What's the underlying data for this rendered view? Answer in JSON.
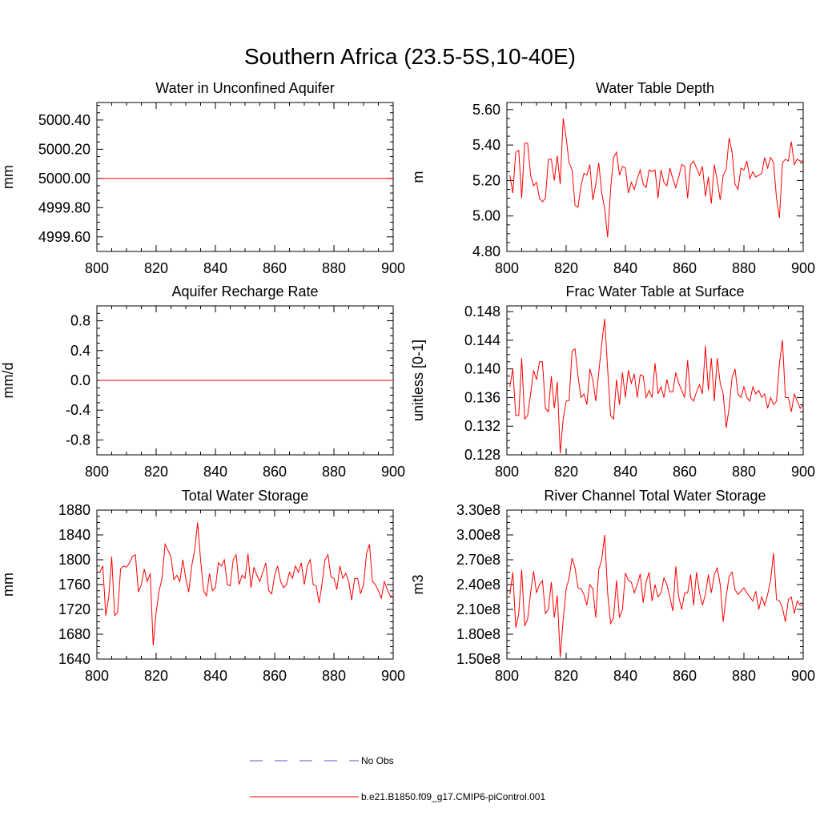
{
  "figure_title": "Southern Africa (23.5-5S,10-40E)",
  "legend": {
    "obs_label": "No Obs",
    "model_label": "b.e21.B1850.f09_g17.CMIP6-piControl.001",
    "obs_color": "#5a5ad0",
    "model_color": "#ff0000"
  },
  "chart_data": [
    {
      "type": "line",
      "title": "Water in Unconfined Aquifer",
      "ylabel": "mm",
      "xlim": [
        800,
        900
      ],
      "ylim": [
        4999.5,
        5000.52
      ],
      "xticks": [
        800,
        820,
        840,
        860,
        880,
        900
      ],
      "yticks": [
        4999.6,
        4999.8,
        5000.0,
        5000.2,
        5000.4
      ],
      "ytick_labels": [
        "4999.60",
        "4999.80",
        "5000.00",
        "5000.20",
        "5000.40"
      ],
      "x_start": 801,
      "values": [
        5000.0,
        5000.0,
        5000.0,
        5000.0,
        5000.0,
        5000.0,
        5000.0,
        5000.0,
        5000.0,
        5000.0,
        5000.0,
        5000.0,
        5000.0,
        5000.0,
        5000.0,
        5000.0,
        5000.0,
        5000.0,
        5000.0,
        5000.0,
        5000.0,
        5000.0,
        5000.0,
        5000.0,
        5000.0,
        5000.0,
        5000.0,
        5000.0,
        5000.0,
        5000.0,
        5000.0,
        5000.0,
        5000.0,
        5000.0,
        5000.0,
        5000.0,
        5000.0,
        5000.0,
        5000.0,
        5000.0,
        5000.0,
        5000.0,
        5000.0,
        5000.0,
        5000.0,
        5000.0,
        5000.0,
        5000.0,
        5000.0,
        5000.0,
        5000.0,
        5000.0,
        5000.0,
        5000.0,
        5000.0,
        5000.0,
        5000.0,
        5000.0,
        5000.0,
        5000.0,
        5000.0,
        5000.0,
        5000.0,
        5000.0,
        5000.0,
        5000.0,
        5000.0,
        5000.0,
        5000.0,
        5000.0,
        5000.0,
        5000.0,
        5000.0,
        5000.0,
        5000.0,
        5000.0,
        5000.0,
        5000.0,
        5000.0,
        5000.0,
        5000.0,
        5000.0,
        5000.0,
        5000.0,
        5000.0,
        5000.0,
        5000.0,
        5000.0,
        5000.0,
        5000.0,
        5000.0,
        5000.0,
        5000.0,
        5000.0,
        5000.0,
        5000.0,
        5000.0,
        5000.0,
        5000.0,
        5000.0
      ]
    },
    {
      "type": "line",
      "title": "Water Table Depth",
      "ylabel": "m",
      "xlim": [
        800,
        900
      ],
      "ylim": [
        4.8,
        5.64
      ],
      "xticks": [
        800,
        820,
        840,
        860,
        880,
        900
      ],
      "yticks": [
        4.8,
        5.0,
        5.2,
        5.4,
        5.6
      ],
      "ytick_labels": [
        "4.80",
        "5.00",
        "5.20",
        "5.40",
        "5.60"
      ],
      "x_start": 801,
      "values": [
        5.23,
        5.13,
        5.36,
        5.37,
        5.1,
        5.41,
        5.41,
        5.23,
        5.17,
        5.19,
        5.1,
        5.08,
        5.1,
        5.32,
        5.32,
        5.2,
        5.34,
        5.18,
        5.55,
        5.44,
        5.3,
        5.26,
        5.06,
        5.05,
        5.17,
        5.24,
        5.23,
        5.29,
        5.09,
        5.18,
        5.3,
        5.13,
        5.04,
        4.88,
        5.15,
        5.33,
        5.36,
        5.23,
        5.28,
        5.27,
        5.13,
        5.19,
        5.15,
        5.21,
        5.26,
        5.18,
        5.16,
        5.26,
        5.25,
        5.26,
        5.1,
        5.26,
        5.19,
        5.17,
        5.27,
        5.21,
        5.16,
        5.22,
        5.29,
        5.28,
        5.1,
        5.29,
        5.31,
        5.27,
        5.23,
        5.28,
        5.11,
        5.22,
        5.07,
        5.29,
        5.2,
        5.09,
        5.23,
        5.26,
        5.44,
        5.36,
        5.18,
        5.15,
        5.27,
        5.26,
        5.31,
        5.21,
        5.25,
        5.22,
        5.23,
        5.24,
        5.33,
        5.27,
        5.33,
        5.3,
        5.1,
        4.99,
        5.3,
        5.32,
        5.31,
        5.42,
        5.29,
        5.32,
        5.31,
        5.31
      ]
    },
    {
      "type": "line",
      "title": "Aquifer Recharge Rate",
      "ylabel": "mm/d",
      "xlim": [
        800,
        900
      ],
      "ylim": [
        -1.0,
        1.0
      ],
      "xticks": [
        800,
        820,
        840,
        860,
        880,
        900
      ],
      "yticks": [
        -0.8,
        -0.4,
        0.0,
        0.4,
        0.8
      ],
      "ytick_labels": [
        "-0.8",
        "-0.4",
        "0.0",
        "0.4",
        "0.8"
      ],
      "x_start": 801,
      "values": [
        0.0,
        0.0,
        0.0,
        0.0,
        0.0,
        0.0,
        0.0,
        0.0,
        0.0,
        0.0,
        0.0,
        0.0,
        0.0,
        0.0,
        0.0,
        0.0,
        0.0,
        0.0,
        0.0,
        0.0,
        0.0,
        0.0,
        0.0,
        0.0,
        0.0,
        0.0,
        0.0,
        0.0,
        0.0,
        0.0,
        0.0,
        0.0,
        0.0,
        0.0,
        0.0,
        0.0,
        0.0,
        0.0,
        0.0,
        0.0,
        0.0,
        0.0,
        0.0,
        0.0,
        0.0,
        0.0,
        0.0,
        0.0,
        0.0,
        0.0,
        0.0,
        0.0,
        0.0,
        0.0,
        0.0,
        0.0,
        0.0,
        0.0,
        0.0,
        0.0,
        0.0,
        0.0,
        0.0,
        0.0,
        0.0,
        0.0,
        0.0,
        0.0,
        0.0,
        0.0,
        0.0,
        0.0,
        0.0,
        0.0,
        0.0,
        0.0,
        0.0,
        0.0,
        0.0,
        0.0,
        0.0,
        0.0,
        0.0,
        0.0,
        0.0,
        0.0,
        0.0,
        0.0,
        0.0,
        0.0,
        0.0,
        0.0,
        0.0,
        0.0,
        0.0,
        0.0,
        0.0,
        0.0,
        0.0,
        0.0
      ]
    },
    {
      "type": "line",
      "title": "Frac Water Table at Surface",
      "ylabel": "unitless [0-1]",
      "xlim": [
        800,
        900
      ],
      "ylim": [
        0.128,
        0.1488
      ],
      "xticks": [
        800,
        820,
        840,
        860,
        880,
        900
      ],
      "yticks": [
        0.128,
        0.132,
        0.136,
        0.14,
        0.144,
        0.148
      ],
      "ytick_labels": [
        "0.128",
        "0.132",
        "0.136",
        "0.140",
        "0.144",
        "0.148"
      ],
      "x_start": 801,
      "values": [
        0.1375,
        0.14,
        0.1335,
        0.1335,
        0.1415,
        0.133,
        0.1335,
        0.1365,
        0.1398,
        0.1385,
        0.141,
        0.141,
        0.1345,
        0.134,
        0.139,
        0.1345,
        0.1382,
        0.1282,
        0.133,
        0.1355,
        0.1356,
        0.1425,
        0.1428,
        0.139,
        0.136,
        0.1365,
        0.135,
        0.14,
        0.1385,
        0.1355,
        0.1395,
        0.1435,
        0.147,
        0.14,
        0.1335,
        0.133,
        0.1385,
        0.135,
        0.1395,
        0.136,
        0.1398,
        0.138,
        0.1393,
        0.136,
        0.1392,
        0.139,
        0.136,
        0.137,
        0.136,
        0.1408,
        0.1365,
        0.1375,
        0.136,
        0.1385,
        0.1368,
        0.1368,
        0.1395,
        0.138,
        0.137,
        0.136,
        0.1412,
        0.136,
        0.1355,
        0.1368,
        0.1378,
        0.1365,
        0.1432,
        0.137,
        0.1415,
        0.1355,
        0.1415,
        0.138,
        0.1365,
        0.1318,
        0.1345,
        0.1388,
        0.14,
        0.1365,
        0.136,
        0.1375,
        0.136,
        0.1355,
        0.1375,
        0.1365,
        0.137,
        0.136,
        0.1365,
        0.1345,
        0.136,
        0.135,
        0.1355,
        0.1408,
        0.144,
        0.136,
        0.136,
        0.134,
        0.1365,
        0.1355,
        0.1345,
        0.135
      ]
    },
    {
      "type": "line",
      "title": "Total Water Storage",
      "ylabel": "mm",
      "xlim": [
        800,
        900
      ],
      "ylim": [
        1640,
        1880
      ],
      "xticks": [
        800,
        820,
        840,
        860,
        880,
        900
      ],
      "yticks": [
        1640,
        1680,
        1720,
        1760,
        1800,
        1840,
        1880
      ],
      "ytick_labels": [
        "1640",
        "1680",
        "1720",
        "1760",
        "1800",
        "1840",
        "1880"
      ],
      "x_start": 801,
      "values": [
        1780,
        1790,
        1710,
        1740,
        1805,
        1710,
        1715,
        1785,
        1790,
        1788,
        1795,
        1805,
        1808,
        1748,
        1760,
        1785,
        1765,
        1778,
        1662,
        1715,
        1750,
        1770,
        1825,
        1815,
        1805,
        1768,
        1775,
        1765,
        1800,
        1770,
        1748,
        1790,
        1815,
        1860,
        1800,
        1750,
        1742,
        1778,
        1750,
        1755,
        1795,
        1790,
        1800,
        1760,
        1758,
        1800,
        1808,
        1760,
        1775,
        1770,
        1810,
        1755,
        1788,
        1775,
        1765,
        1780,
        1795,
        1750,
        1745,
        1775,
        1790,
        1765,
        1755,
        1760,
        1780,
        1770,
        1790,
        1780,
        1795,
        1760,
        1790,
        1800,
        1760,
        1758,
        1730,
        1762,
        1800,
        1808,
        1772,
        1770,
        1752,
        1790,
        1770,
        1778,
        1765,
        1735,
        1770,
        1770,
        1745,
        1760,
        1810,
        1825,
        1765,
        1760,
        1750,
        1738,
        1765,
        1752,
        1742,
        1740
      ]
    },
    {
      "type": "line",
      "title": "River Channel Total Water Storage",
      "ylabel": "m3",
      "xlim": [
        800,
        900
      ],
      "ylim": [
        150000000,
        330000000
      ],
      "xticks": [
        800,
        820,
        840,
        860,
        880,
        900
      ],
      "yticks": [
        150000000,
        180000000,
        210000000,
        240000000,
        270000000,
        300000000,
        330000000
      ],
      "ytick_labels": [
        "1.50e8",
        "1.80e8",
        "2.10e8",
        "2.40e8",
        "2.70e8",
        "3.00e8",
        "3.30e8"
      ],
      "x_start": 801,
      "values": [
        228000000,
        255000000,
        188000000,
        205000000,
        258000000,
        190000000,
        198000000,
        230000000,
        256000000,
        230000000,
        240000000,
        245000000,
        205000000,
        210000000,
        243000000,
        200000000,
        227000000,
        152000000,
        198000000,
        235000000,
        248000000,
        272000000,
        260000000,
        236000000,
        235000000,
        228000000,
        215000000,
        240000000,
        235000000,
        200000000,
        258000000,
        270000000,
        300000000,
        230000000,
        193000000,
        200000000,
        245000000,
        200000000,
        210000000,
        254000000,
        245000000,
        243000000,
        230000000,
        240000000,
        253000000,
        218000000,
        243000000,
        255000000,
        220000000,
        240000000,
        225000000,
        230000000,
        248000000,
        240000000,
        225000000,
        208000000,
        262000000,
        225000000,
        210000000,
        230000000,
        230000000,
        252000000,
        215000000,
        255000000,
        230000000,
        215000000,
        228000000,
        252000000,
        230000000,
        252000000,
        260000000,
        240000000,
        195000000,
        225000000,
        250000000,
        255000000,
        234000000,
        228000000,
        232000000,
        236000000,
        230000000,
        225000000,
        220000000,
        232000000,
        210000000,
        225000000,
        215000000,
        228000000,
        245000000,
        278000000,
        222000000,
        220000000,
        212000000,
        195000000,
        222000000,
        225000000,
        205000000,
        220000000,
        215000000,
        215000000
      ]
    }
  ]
}
